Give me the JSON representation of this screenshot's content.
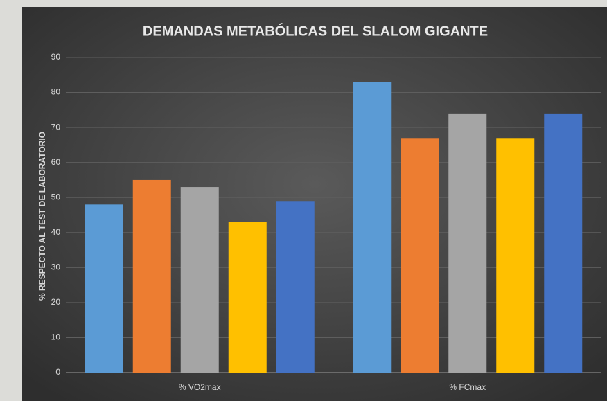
{
  "chart_data": {
    "type": "bar",
    "title": "DEMANDAS METABÓLICAS DEL SLALOM GIGANTE",
    "y_label": "% RESPECTO AL TEST DE LABORATORIO",
    "categories": [
      "% VO2max",
      "% FCmax"
    ],
    "series": [
      {
        "color": "#5b9bd5",
        "values": [
          48,
          83
        ]
      },
      {
        "color": "#ed7d31",
        "values": [
          55,
          67
        ]
      },
      {
        "color": "#a5a5a5",
        "values": [
          53,
          74
        ]
      },
      {
        "color": "#ffc000",
        "values": [
          43,
          67
        ]
      },
      {
        "color": "#4472c4",
        "values": [
          49,
          74
        ]
      }
    ],
    "ylim": [
      0,
      90
    ],
    "yticks": [
      0,
      10,
      20,
      30,
      40,
      50,
      60,
      70,
      80,
      90
    ],
    "grid": true
  }
}
